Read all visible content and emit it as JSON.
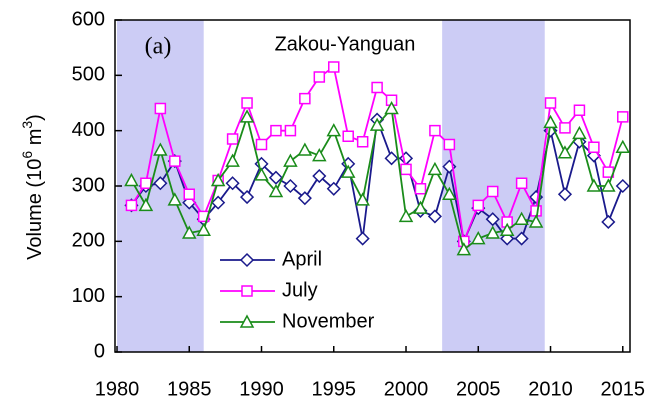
{
  "chart_data": {
    "type": "line",
    "title": "Zakou-Yanguan",
    "annotation": "(a)",
    "ylabel": [
      "Volume (10",
      "6",
      " m",
      "3",
      ")"
    ],
    "x": [
      1981,
      1982,
      1983,
      1984,
      1985,
      1986,
      1987,
      1988,
      1989,
      1990,
      1991,
      1992,
      1993,
      1994,
      1995,
      1996,
      1997,
      1998,
      1999,
      2000,
      2001,
      2002,
      2003,
      2004,
      2005,
      2006,
      2007,
      2008,
      2009,
      2010,
      2011,
      2012,
      2013,
      2014,
      2015
    ],
    "series": [
      {
        "name": "April",
        "color": "#1a1a8c",
        "marker": "diamond",
        "values": [
          265,
          300,
          305,
          345,
          270,
          240,
          270,
          305,
          280,
          340,
          315,
          300,
          278,
          318,
          295,
          340,
          205,
          420,
          350,
          350,
          255,
          245,
          335,
          200,
          260,
          240,
          205,
          205,
          280,
          400,
          285,
          380,
          355,
          235,
          300
        ]
      },
      {
        "name": "July",
        "color": "#ff00ff",
        "marker": "square",
        "values": [
          265,
          305,
          440,
          345,
          285,
          245,
          310,
          385,
          450,
          375,
          400,
          400,
          458,
          497,
          515,
          390,
          380,
          478,
          455,
          330,
          295,
          400,
          375,
          200,
          265,
          290,
          235,
          305,
          255,
          450,
          405,
          437,
          370,
          325,
          425
        ]
      },
      {
        "name": "November",
        "color": "#1a8c1a",
        "marker": "triangle",
        "values": [
          310,
          265,
          365,
          275,
          215,
          220,
          310,
          345,
          425,
          320,
          290,
          345,
          365,
          355,
          400,
          325,
          275,
          410,
          440,
          245,
          260,
          330,
          285,
          185,
          205,
          215,
          220,
          240,
          235,
          415,
          360,
          395,
          300,
          300,
          370
        ]
      }
    ],
    "bands": [
      [
        1980,
        1986
      ],
      [
        2002.5,
        2009.6
      ]
    ],
    "band_color": "#ccccf5",
    "xlim": [
      1980,
      2015.5
    ],
    "ylim": [
      0,
      600
    ],
    "xticks": [
      1980,
      1985,
      1990,
      1995,
      2000,
      2005,
      2010,
      2015
    ],
    "yticks": [
      0,
      100,
      200,
      300,
      400,
      500,
      600
    ]
  }
}
